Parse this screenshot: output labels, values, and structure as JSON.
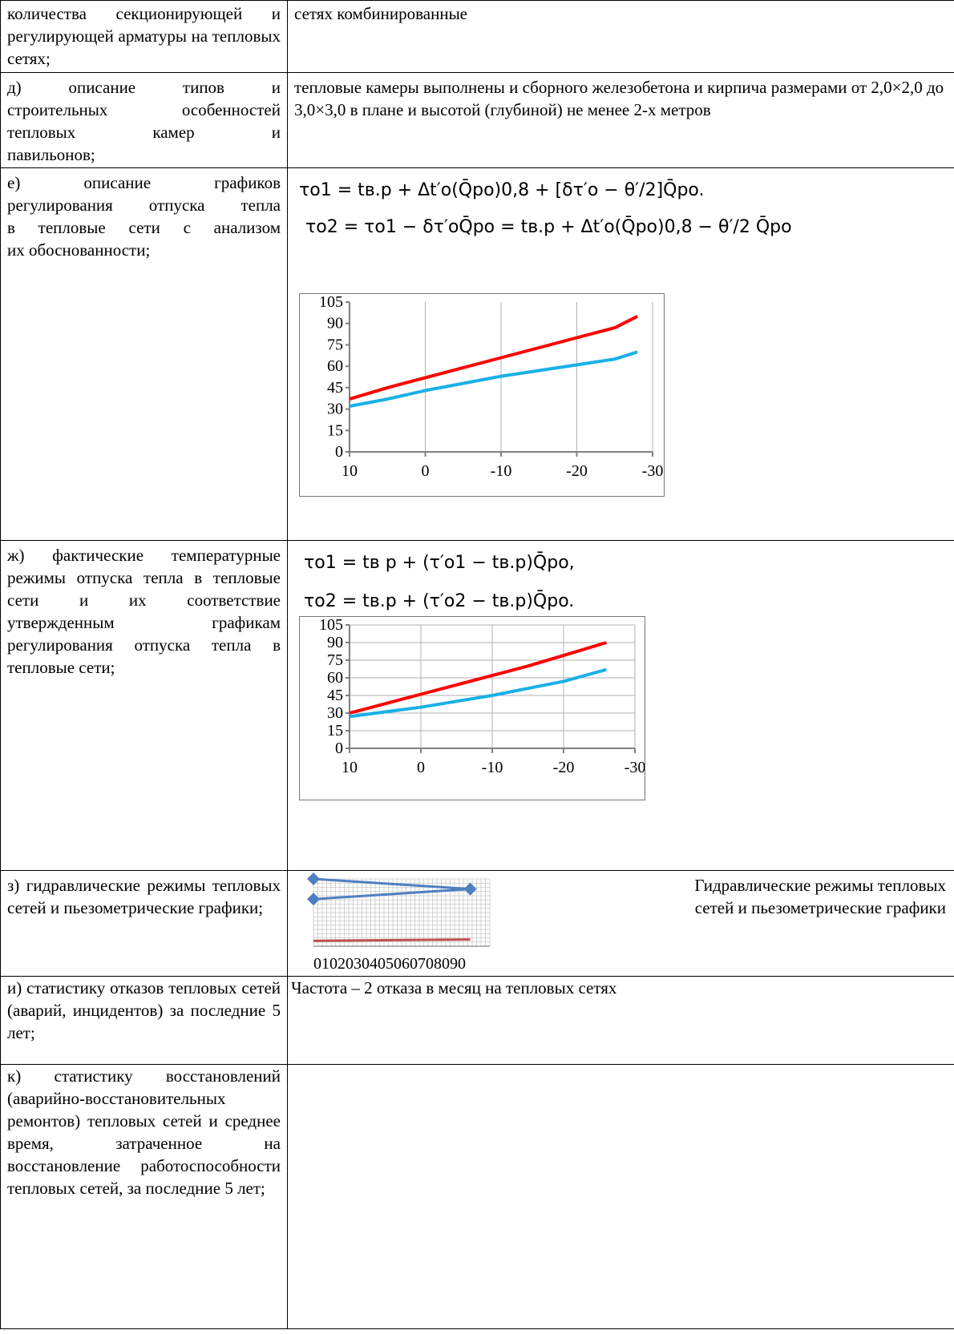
{
  "rows": {
    "r1": {
      "left": "количества секционирующей и регулирующей арматуры на тепловых сетях;",
      "right": "сетях комбинированные"
    },
    "r2": {
      "left_line1": "д) описание типов и",
      "left_line2": "строительных особенностей",
      "left_line3": "тепловых камер и",
      "left_line4": "павильонов;",
      "right": "тепловые камеры выполнены и сборного железобетона и кирпича размерами от 2,0×2,0 до 3,0×3,0 в плане и высотой (глубиной) не менее 2-х метров"
    },
    "r3": {
      "left_line1": "е) описание графиков",
      "left_line2": "регулирования отпуска тепла",
      "left_line3": "в тепловые сети с анализом",
      "left_line4": "их обоснованности;",
      "formula1": "τo1 = tв.р + Δt′o(Q̄po)0,8 + [δτ′o − θ′/2]Q̄po.",
      "formula2": "τo2 = τo1 − δτ′oQ̄po = tв.р + Δt′o(Q̄po)0,8 − θ′/2 Q̄po"
    },
    "r4": {
      "left": "ж) фактические температурные режимы отпуска тепла в тепловые сети и их соответствие утвержденным графикам регулирования отпуска тепла в тепловые сети;",
      "formula1": "τo1 = tв р + (τ′o1 − tв.р)Q̄po,",
      "formula2": "τo2 = tв.р + (τ′o2 − tв.р)Q̄po."
    },
    "r5": {
      "left": "з) гидравлические режимы тепловых сетей и пьезометрические графики;",
      "caption_line1": "Гидравлические режимы тепловых",
      "caption_line2": "сетей и пьезометрические графики",
      "chart_xticks": "0102030405060708090"
    },
    "r6": {
      "left": "и) статистику отказов тепловых сетей (аварий, инцидентов) за последние 5 лет;",
      "right": "Частота – 2 отказа в месяц на тепловых сетях"
    },
    "r7": {
      "left": "к) статистику восстановлений (аварийно-восстановительных ремонтов) тепловых сетей и среднее время, затраченное на восстановление работоспособности тепловых сетей, за последние 5 лет;"
    }
  },
  "colors": {
    "supply": "#ff0000",
    "return": "#1ab0e8",
    "piezo": "#4f7fc0",
    "piezo_low": "#c0504d"
  },
  "chart_data": [
    {
      "type": "line",
      "x": [
        10,
        5,
        0,
        -5,
        -10,
        -15,
        -20,
        -25,
        -28
      ],
      "series": [
        {
          "values": [
            37,
            45,
            52,
            59,
            66,
            73,
            80,
            87,
            95
          ]
        },
        {
          "values": [
            32,
            37,
            43,
            48,
            53,
            57,
            61,
            65,
            70
          ]
        }
      ],
      "xticks": [
        "10",
        "0",
        "-10",
        "-20",
        "-30"
      ],
      "yticks": [
        "105",
        "90",
        "75",
        "60",
        "45",
        "30",
        "15",
        "0"
      ],
      "xlim": [
        10,
        -30
      ],
      "ylim": [
        0,
        105
      ],
      "grid": "vertical"
    },
    {
      "type": "line",
      "x": [
        10,
        5,
        0,
        -5,
        -10,
        -15,
        -20,
        -26
      ],
      "series": [
        {
          "values": [
            30,
            38,
            46,
            54,
            62,
            70,
            79,
            90
          ]
        },
        {
          "values": [
            27,
            31,
            35,
            40,
            45,
            51,
            57,
            67
          ]
        }
      ],
      "xticks": [
        "10",
        "0",
        "-10",
        "-20",
        "-30"
      ],
      "yticks": [
        "105",
        "90",
        "75",
        "60",
        "45",
        "30",
        "15",
        "0"
      ],
      "xlim": [
        10,
        -30
      ],
      "ylim": [
        0,
        105
      ],
      "grid": "both"
    },
    {
      "type": "line",
      "series": [
        {
          "x": [
            0,
            80,
            0
          ],
          "values": [
            100,
            85,
            70
          ]
        },
        {
          "x": [
            0,
            80,
            0
          ],
          "values": [
            8,
            10,
            8
          ]
        }
      ],
      "xlim": [
        0,
        90
      ],
      "grid": "both"
    }
  ]
}
